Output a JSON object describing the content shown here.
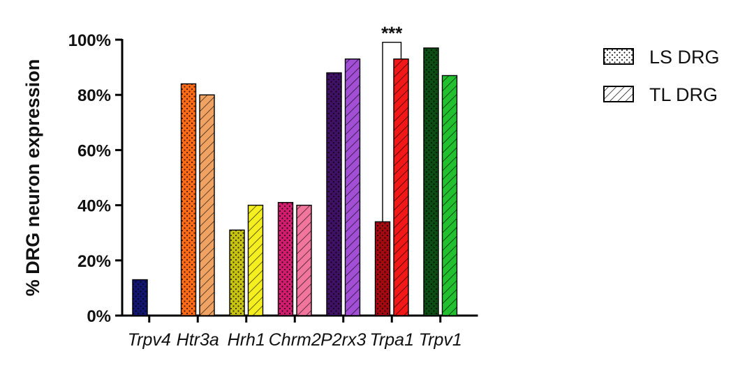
{
  "chart_data": {
    "type": "bar",
    "ylabel": "% DRG neuron expression",
    "ylim": [
      0,
      100
    ],
    "yticks": [
      0,
      20,
      40,
      60,
      80,
      100
    ],
    "ytick_labels": [
      "0%",
      "20%",
      "40%",
      "60%",
      "80%",
      "100%"
    ],
    "categories": [
      "Trpv4",
      "Htr3a",
      "Hrh1",
      "Chrm2",
      "P2rx3",
      "Trpa1",
      "Trpv1"
    ],
    "series": [
      {
        "name": "LS DRG",
        "pattern": "dots",
        "values": [
          13,
          84,
          31,
          41,
          88,
          34,
          97
        ],
        "colors": [
          "#12166e",
          "#ff6a17",
          "#c7c20f",
          "#d21c6e",
          "#3f1164",
          "#a40910",
          "#0b4d12"
        ]
      },
      {
        "name": "TL DRG",
        "pattern": "hatch",
        "values": [
          null,
          80,
          40,
          40,
          93,
          93,
          87
        ],
        "colors": [
          "#2e3a9e",
          "#f0a262",
          "#f5ef1f",
          "#f2759e",
          "#a24fd6",
          "#f21818",
          "#22c02f"
        ]
      }
    ],
    "legend": {
      "placement": "top-right",
      "entries": [
        "LS DRG",
        "TL DRG"
      ]
    },
    "annotations": [
      {
        "category": "Trpa1",
        "text": "***"
      }
    ],
    "grid": false
  }
}
